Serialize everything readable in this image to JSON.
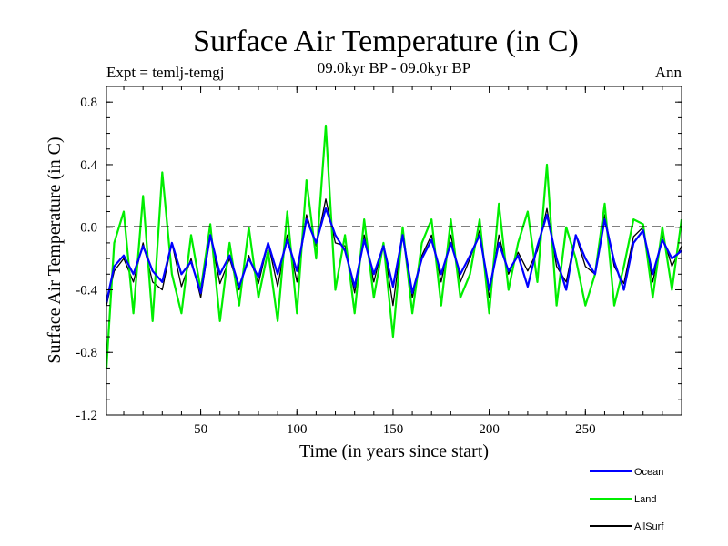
{
  "chart_data": {
    "type": "line",
    "title": "Surface Air Temperature (in C)",
    "subtitle": "09.0kyr BP - 09.0kyr BP",
    "experiment_label": "Expt = temlj-temgj",
    "season_label": "Ann",
    "xlabel": "Time (in years since start)",
    "ylabel": "Surface Air Temperature (in C)",
    "xlim": [
      1,
      300
    ],
    "ylim": [
      -1.2,
      0.9
    ],
    "x_ticks": [
      50,
      100,
      150,
      200,
      250
    ],
    "x_tick_labels": [
      "50",
      "100",
      "150",
      "200",
      "250"
    ],
    "y_ticks": [
      0.8,
      0.4,
      0.0,
      -0.4,
      -0.8,
      -1.2
    ],
    "y_tick_labels": [
      "0.8",
      "0.4",
      "0.0",
      "-0.4",
      "-0.8",
      "-1.2"
    ],
    "reference_line": 0.0,
    "x": [
      1,
      5,
      10,
      15,
      20,
      25,
      30,
      35,
      40,
      45,
      50,
      55,
      60,
      65,
      70,
      75,
      80,
      85,
      90,
      95,
      100,
      105,
      110,
      115,
      120,
      125,
      130,
      135,
      140,
      145,
      150,
      155,
      160,
      165,
      170,
      175,
      180,
      185,
      190,
      195,
      200,
      205,
      210,
      215,
      220,
      225,
      230,
      235,
      240,
      245,
      250,
      255,
      260,
      265,
      270,
      275,
      280,
      285,
      290,
      295,
      300
    ],
    "series": [
      {
        "name": "Ocean",
        "color": "#0000ff",
        "values": [
          -0.48,
          -0.25,
          -0.18,
          -0.3,
          -0.12,
          -0.28,
          -0.35,
          -0.1,
          -0.3,
          -0.22,
          -0.42,
          -0.05,
          -0.3,
          -0.18,
          -0.38,
          -0.2,
          -0.32,
          -0.1,
          -0.3,
          -0.08,
          -0.28,
          0.05,
          -0.1,
          0.12,
          -0.05,
          -0.15,
          -0.38,
          -0.08,
          -0.3,
          -0.12,
          -0.38,
          -0.05,
          -0.42,
          -0.2,
          -0.08,
          -0.3,
          -0.1,
          -0.3,
          -0.18,
          -0.05,
          -0.4,
          -0.1,
          -0.28,
          -0.18,
          -0.38,
          -0.12,
          0.08,
          -0.2,
          -0.4,
          -0.05,
          -0.2,
          -0.3,
          0.05,
          -0.22,
          -0.4,
          -0.1,
          -0.02,
          -0.3,
          -0.08,
          -0.2,
          -0.15
        ]
      },
      {
        "name": "Land",
        "color": "#00ee00",
        "values": [
          -0.9,
          -0.1,
          0.1,
          -0.55,
          0.2,
          -0.6,
          0.35,
          -0.3,
          -0.55,
          -0.05,
          -0.4,
          0.02,
          -0.6,
          -0.1,
          -0.5,
          0.0,
          -0.45,
          -0.15,
          -0.6,
          0.1,
          -0.55,
          0.3,
          -0.2,
          0.65,
          -0.4,
          -0.05,
          -0.55,
          0.05,
          -0.45,
          -0.1,
          -0.7,
          0.0,
          -0.55,
          -0.1,
          0.05,
          -0.5,
          0.05,
          -0.45,
          -0.3,
          0.05,
          -0.55,
          0.15,
          -0.4,
          -0.1,
          0.1,
          -0.35,
          0.4,
          -0.5,
          0.0,
          -0.2,
          -0.5,
          -0.3,
          0.15,
          -0.5,
          -0.25,
          0.05,
          0.02,
          -0.45,
          0.0,
          -0.4,
          0.05
        ]
      },
      {
        "name": "AllSurf",
        "color": "#000000",
        "values": [
          -0.5,
          -0.28,
          -0.2,
          -0.35,
          -0.1,
          -0.35,
          -0.4,
          -0.1,
          -0.38,
          -0.2,
          -0.45,
          -0.05,
          -0.36,
          -0.2,
          -0.4,
          -0.18,
          -0.36,
          -0.1,
          -0.38,
          -0.05,
          -0.35,
          0.08,
          -0.12,
          0.18,
          -0.1,
          -0.12,
          -0.42,
          -0.05,
          -0.35,
          -0.1,
          -0.5,
          -0.02,
          -0.45,
          -0.18,
          -0.05,
          -0.35,
          -0.05,
          -0.35,
          -0.2,
          -0.02,
          -0.45,
          -0.05,
          -0.3,
          -0.16,
          -0.28,
          -0.15,
          0.12,
          -0.25,
          -0.35,
          -0.05,
          -0.25,
          -0.3,
          0.08,
          -0.25,
          -0.36,
          -0.06,
          0.0,
          -0.35,
          -0.05,
          -0.25,
          -0.12
        ]
      }
    ],
    "draw_order": [
      "AllSurf",
      "Land",
      "Ocean"
    ],
    "legend": {
      "position": "bottom-right",
      "entries": [
        "Ocean",
        "Land",
        "AllSurf"
      ]
    }
  }
}
